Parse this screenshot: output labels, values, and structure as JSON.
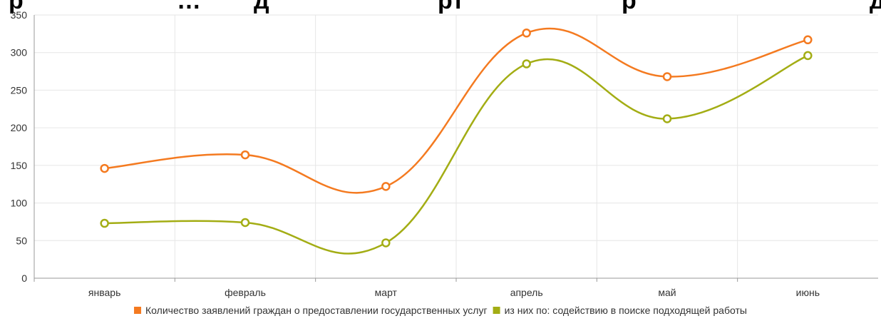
{
  "chart_data": {
    "type": "line",
    "title": "",
    "title_visible_fragments": [
      "р",
      "…",
      "д",
      "рт",
      "р",
      "д"
    ],
    "categories": [
      "январь",
      "февраль",
      "март",
      "апрель",
      "май",
      "июнь"
    ],
    "series": [
      {
        "name": "Количество заявлений граждан о предоставлении государственных услуг",
        "color": "#f47a20",
        "values": [
          146,
          164,
          122,
          326,
          268,
          317
        ]
      },
      {
        "name": "из них по: содействию в поиске подходящей работы",
        "color": "#a3ad14",
        "values": [
          73,
          74,
          47,
          285,
          212,
          296
        ]
      }
    ],
    "ylim": [
      0,
      350
    ],
    "yticks": [
      0,
      50,
      100,
      150,
      200,
      250,
      300,
      350
    ],
    "xlabel": "",
    "ylabel": "",
    "grid": true,
    "legend_position": "bottom",
    "smooth": true
  }
}
